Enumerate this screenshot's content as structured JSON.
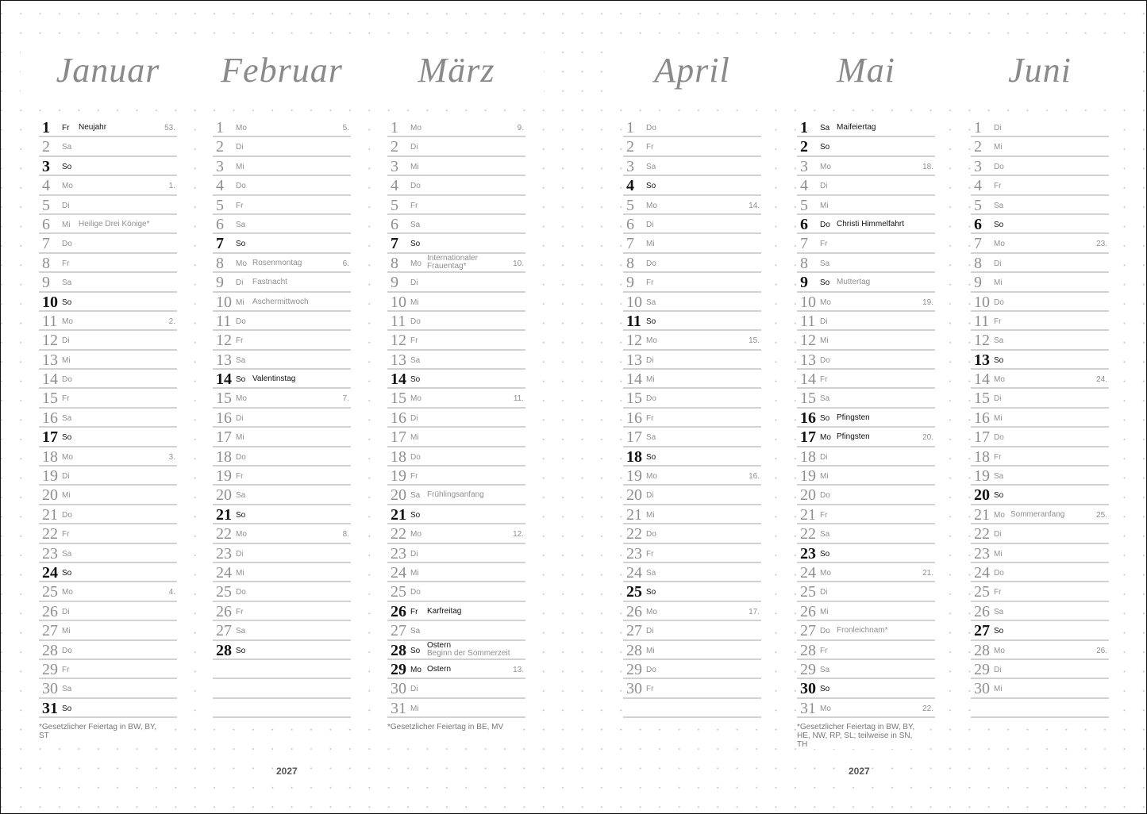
{
  "year_left": "2027",
  "year_right": "2027",
  "months": [
    {
      "name": "Januar",
      "footnote": "*Gesetzlicher Feiertag in BW, BY, ST",
      "days": [
        {
          "d": "1",
          "wd": "Fr",
          "n": "Neujahr",
          "w": "53.",
          "h": 1
        },
        {
          "d": "2",
          "wd": "Sa"
        },
        {
          "d": "3",
          "wd": "So",
          "h": 1
        },
        {
          "d": "4",
          "wd": "Mo",
          "w": "1."
        },
        {
          "d": "5",
          "wd": "Di"
        },
        {
          "d": "6",
          "wd": "Mi",
          "n": "Heilige Drei Könige*"
        },
        {
          "d": "7",
          "wd": "Do"
        },
        {
          "d": "8",
          "wd": "Fr"
        },
        {
          "d": "9",
          "wd": "Sa"
        },
        {
          "d": "10",
          "wd": "So",
          "h": 1
        },
        {
          "d": "11",
          "wd": "Mo",
          "w": "2."
        },
        {
          "d": "12",
          "wd": "Di"
        },
        {
          "d": "13",
          "wd": "Mi"
        },
        {
          "d": "14",
          "wd": "Do"
        },
        {
          "d": "15",
          "wd": "Fr"
        },
        {
          "d": "16",
          "wd": "Sa"
        },
        {
          "d": "17",
          "wd": "So",
          "h": 1
        },
        {
          "d": "18",
          "wd": "Mo",
          "w": "3."
        },
        {
          "d": "19",
          "wd": "Di"
        },
        {
          "d": "20",
          "wd": "Mi"
        },
        {
          "d": "21",
          "wd": "Do"
        },
        {
          "d": "22",
          "wd": "Fr"
        },
        {
          "d": "23",
          "wd": "Sa"
        },
        {
          "d": "24",
          "wd": "So",
          "h": 1
        },
        {
          "d": "25",
          "wd": "Mo",
          "w": "4."
        },
        {
          "d": "26",
          "wd": "Di"
        },
        {
          "d": "27",
          "wd": "Mi"
        },
        {
          "d": "28",
          "wd": "Do"
        },
        {
          "d": "29",
          "wd": "Fr"
        },
        {
          "d": "30",
          "wd": "Sa"
        },
        {
          "d": "31",
          "wd": "So",
          "h": 1
        }
      ]
    },
    {
      "name": "Februar",
      "days": [
        {
          "d": "1",
          "wd": "Mo",
          "w": "5."
        },
        {
          "d": "2",
          "wd": "Di"
        },
        {
          "d": "3",
          "wd": "Mi"
        },
        {
          "d": "4",
          "wd": "Do"
        },
        {
          "d": "5",
          "wd": "Fr"
        },
        {
          "d": "6",
          "wd": "Sa"
        },
        {
          "d": "7",
          "wd": "So",
          "h": 1
        },
        {
          "d": "8",
          "wd": "Mo",
          "n": "Rosenmontag",
          "w": "6."
        },
        {
          "d": "9",
          "wd": "Di",
          "n": "Fastnacht"
        },
        {
          "d": "10",
          "wd": "Mi",
          "n": "Aschermittwoch"
        },
        {
          "d": "11",
          "wd": "Do"
        },
        {
          "d": "12",
          "wd": "Fr"
        },
        {
          "d": "13",
          "wd": "Sa"
        },
        {
          "d": "14",
          "wd": "So",
          "n": "Valentinstag",
          "h": 1
        },
        {
          "d": "15",
          "wd": "Mo",
          "w": "7."
        },
        {
          "d": "16",
          "wd": "Di"
        },
        {
          "d": "17",
          "wd": "Mi"
        },
        {
          "d": "18",
          "wd": "Do"
        },
        {
          "d": "19",
          "wd": "Fr"
        },
        {
          "d": "20",
          "wd": "Sa"
        },
        {
          "d": "21",
          "wd": "So",
          "h": 1
        },
        {
          "d": "22",
          "wd": "Mo",
          "w": "8."
        },
        {
          "d": "23",
          "wd": "Di"
        },
        {
          "d": "24",
          "wd": "Mi"
        },
        {
          "d": "25",
          "wd": "Do"
        },
        {
          "d": "26",
          "wd": "Fr"
        },
        {
          "d": "27",
          "wd": "Sa"
        },
        {
          "d": "28",
          "wd": "So",
          "h": 1
        }
      ]
    },
    {
      "name": "März",
      "footnote": "*Gesetzlicher Feiertag in BE, MV",
      "days": [
        {
          "d": "1",
          "wd": "Mo",
          "w": "9."
        },
        {
          "d": "2",
          "wd": "Di"
        },
        {
          "d": "3",
          "wd": "Mi"
        },
        {
          "d": "4",
          "wd": "Do"
        },
        {
          "d": "5",
          "wd": "Fr"
        },
        {
          "d": "6",
          "wd": "Sa"
        },
        {
          "d": "7",
          "wd": "So",
          "h": 1
        },
        {
          "d": "8",
          "wd": "Mo",
          "n": "Internationaler Frauentag*",
          "w": "10.",
          "two": 1
        },
        {
          "d": "9",
          "wd": "Di"
        },
        {
          "d": "10",
          "wd": "Mi"
        },
        {
          "d": "11",
          "wd": "Do"
        },
        {
          "d": "12",
          "wd": "Fr"
        },
        {
          "d": "13",
          "wd": "Sa"
        },
        {
          "d": "14",
          "wd": "So",
          "h": 1
        },
        {
          "d": "15",
          "wd": "Mo",
          "w": "11."
        },
        {
          "d": "16",
          "wd": "Di"
        },
        {
          "d": "17",
          "wd": "Mi"
        },
        {
          "d": "18",
          "wd": "Do"
        },
        {
          "d": "19",
          "wd": "Fr"
        },
        {
          "d": "20",
          "wd": "Sa",
          "n": "Frühlingsanfang"
        },
        {
          "d": "21",
          "wd": "So",
          "h": 1
        },
        {
          "d": "22",
          "wd": "Mo",
          "w": "12."
        },
        {
          "d": "23",
          "wd": "Di"
        },
        {
          "d": "24",
          "wd": "Mi"
        },
        {
          "d": "25",
          "wd": "Do"
        },
        {
          "d": "26",
          "wd": "Fr",
          "n": "Karfreitag",
          "h": 1
        },
        {
          "d": "27",
          "wd": "Sa"
        },
        {
          "d": "28",
          "wd": "So",
          "n": "Ostern",
          "n2": "Beginn der Sommerzeit",
          "h": 1
        },
        {
          "d": "29",
          "wd": "Mo",
          "n": "Ostern",
          "w": "13.",
          "h": 1
        },
        {
          "d": "30",
          "wd": "Di"
        },
        {
          "d": "31",
          "wd": "Mi"
        }
      ]
    },
    {
      "name": "April",
      "days": [
        {
          "d": "1",
          "wd": "Do"
        },
        {
          "d": "2",
          "wd": "Fr"
        },
        {
          "d": "3",
          "wd": "Sa"
        },
        {
          "d": "4",
          "wd": "So",
          "h": 1
        },
        {
          "d": "5",
          "wd": "Mo",
          "w": "14."
        },
        {
          "d": "6",
          "wd": "Di"
        },
        {
          "d": "7",
          "wd": "Mi"
        },
        {
          "d": "8",
          "wd": "Do"
        },
        {
          "d": "9",
          "wd": "Fr"
        },
        {
          "d": "10",
          "wd": "Sa"
        },
        {
          "d": "11",
          "wd": "So",
          "h": 1
        },
        {
          "d": "12",
          "wd": "Mo",
          "w": "15."
        },
        {
          "d": "13",
          "wd": "Di"
        },
        {
          "d": "14",
          "wd": "Mi"
        },
        {
          "d": "15",
          "wd": "Do"
        },
        {
          "d": "16",
          "wd": "Fr"
        },
        {
          "d": "17",
          "wd": "Sa"
        },
        {
          "d": "18",
          "wd": "So",
          "h": 1
        },
        {
          "d": "19",
          "wd": "Mo",
          "w": "16."
        },
        {
          "d": "20",
          "wd": "Di"
        },
        {
          "d": "21",
          "wd": "Mi"
        },
        {
          "d": "22",
          "wd": "Do"
        },
        {
          "d": "23",
          "wd": "Fr"
        },
        {
          "d": "24",
          "wd": "Sa"
        },
        {
          "d": "25",
          "wd": "So",
          "h": 1
        },
        {
          "d": "26",
          "wd": "Mo",
          "w": "17."
        },
        {
          "d": "27",
          "wd": "Di"
        },
        {
          "d": "28",
          "wd": "Mi"
        },
        {
          "d": "29",
          "wd": "Do"
        },
        {
          "d": "30",
          "wd": "Fr"
        }
      ]
    },
    {
      "name": "Mai",
      "footnote": "*Gesetzlicher Feiertag in BW, BY, HE, NW, RP, SL; teilweise in SN, TH",
      "days": [
        {
          "d": "1",
          "wd": "Sa",
          "n": "Maifeiertag",
          "h": 1
        },
        {
          "d": "2",
          "wd": "So",
          "h": 1
        },
        {
          "d": "3",
          "wd": "Mo",
          "w": "18."
        },
        {
          "d": "4",
          "wd": "Di"
        },
        {
          "d": "5",
          "wd": "Mi"
        },
        {
          "d": "6",
          "wd": "Do",
          "n": "Christi Himmelfahrt",
          "h": 1
        },
        {
          "d": "7",
          "wd": "Fr"
        },
        {
          "d": "8",
          "wd": "Sa"
        },
        {
          "d": "9",
          "wd": "So",
          "n": "Muttertag",
          "h": 1,
          "grey": 1
        },
        {
          "d": "10",
          "wd": "Mo",
          "w": "19."
        },
        {
          "d": "11",
          "wd": "Di"
        },
        {
          "d": "12",
          "wd": "Mi"
        },
        {
          "d": "13",
          "wd": "Do"
        },
        {
          "d": "14",
          "wd": "Fr"
        },
        {
          "d": "15",
          "wd": "Sa"
        },
        {
          "d": "16",
          "wd": "So",
          "n": "Pfingsten",
          "h": 1
        },
        {
          "d": "17",
          "wd": "Mo",
          "n": "Pfingsten",
          "w": "20.",
          "h": 1
        },
        {
          "d": "18",
          "wd": "Di"
        },
        {
          "d": "19",
          "wd": "Mi"
        },
        {
          "d": "20",
          "wd": "Do"
        },
        {
          "d": "21",
          "wd": "Fr"
        },
        {
          "d": "22",
          "wd": "Sa"
        },
        {
          "d": "23",
          "wd": "So",
          "h": 1
        },
        {
          "d": "24",
          "wd": "Mo",
          "w": "21."
        },
        {
          "d": "25",
          "wd": "Di"
        },
        {
          "d": "26",
          "wd": "Mi"
        },
        {
          "d": "27",
          "wd": "Do",
          "n": "Fronleichnam*"
        },
        {
          "d": "28",
          "wd": "Fr"
        },
        {
          "d": "29",
          "wd": "Sa"
        },
        {
          "d": "30",
          "wd": "So",
          "h": 1
        },
        {
          "d": "31",
          "wd": "Mo",
          "w": "22."
        }
      ]
    },
    {
      "name": "Juni",
      "days": [
        {
          "d": "1",
          "wd": "Di"
        },
        {
          "d": "2",
          "wd": "Mi"
        },
        {
          "d": "3",
          "wd": "Do"
        },
        {
          "d": "4",
          "wd": "Fr"
        },
        {
          "d": "5",
          "wd": "Sa"
        },
        {
          "d": "6",
          "wd": "So",
          "h": 1
        },
        {
          "d": "7",
          "wd": "Mo",
          "w": "23."
        },
        {
          "d": "8",
          "wd": "Di"
        },
        {
          "d": "9",
          "wd": "Mi"
        },
        {
          "d": "10",
          "wd": "Do"
        },
        {
          "d": "11",
          "wd": "Fr"
        },
        {
          "d": "12",
          "wd": "Sa"
        },
        {
          "d": "13",
          "wd": "So",
          "h": 1
        },
        {
          "d": "14",
          "wd": "Mo",
          "w": "24."
        },
        {
          "d": "15",
          "wd": "Di"
        },
        {
          "d": "16",
          "wd": "Mi"
        },
        {
          "d": "17",
          "wd": "Do"
        },
        {
          "d": "18",
          "wd": "Fr"
        },
        {
          "d": "19",
          "wd": "Sa"
        },
        {
          "d": "20",
          "wd": "So",
          "h": 1
        },
        {
          "d": "21",
          "wd": "Mo",
          "n": "Sommeranfang",
          "w": "25."
        },
        {
          "d": "22",
          "wd": "Di"
        },
        {
          "d": "23",
          "wd": "Mi"
        },
        {
          "d": "24",
          "wd": "Do"
        },
        {
          "d": "25",
          "wd": "Fr"
        },
        {
          "d": "26",
          "wd": "Sa"
        },
        {
          "d": "27",
          "wd": "So",
          "h": 1
        },
        {
          "d": "28",
          "wd": "Mo",
          "w": "26."
        },
        {
          "d": "29",
          "wd": "Di"
        },
        {
          "d": "30",
          "wd": "Mi"
        }
      ]
    }
  ]
}
